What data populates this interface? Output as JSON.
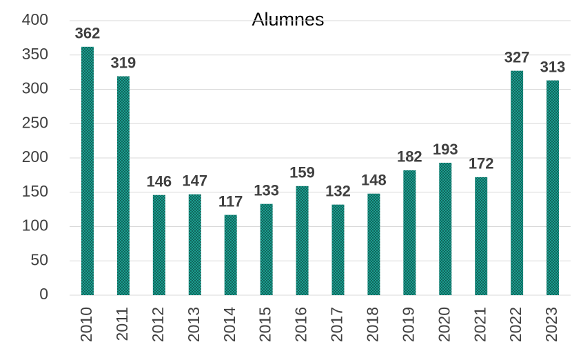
{
  "chart_data": {
    "type": "bar",
    "title": "Alumnes",
    "categories": [
      "2010",
      "2011",
      "2012",
      "2013",
      "2014",
      "2015",
      "2016",
      "2017",
      "2018",
      "2019",
      "2020",
      "2021",
      "2022",
      "2023"
    ],
    "values": [
      362,
      319,
      146,
      147,
      117,
      133,
      159,
      132,
      148,
      182,
      193,
      172,
      327,
      313
    ],
    "color": "#1a9e8f",
    "ylim": [
      0,
      400
    ],
    "yticks": [
      0,
      50,
      100,
      150,
      200,
      250,
      300,
      350,
      400
    ],
    "grid": true
  }
}
